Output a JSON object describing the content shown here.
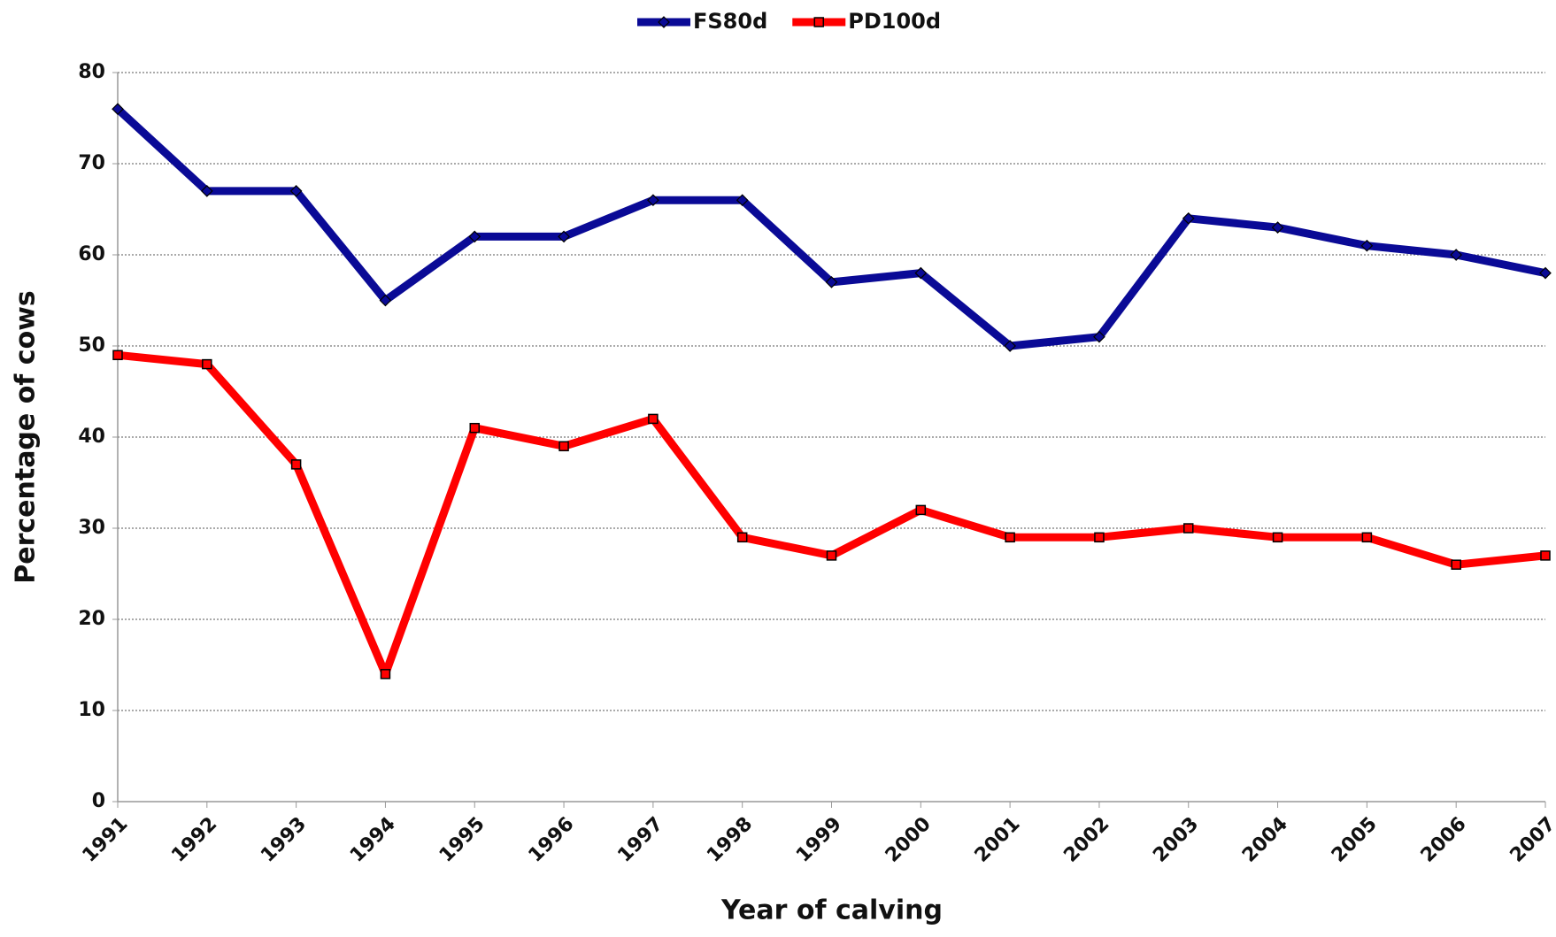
{
  "chart_data": {
    "type": "line",
    "x_label": "Year of calving",
    "y_label": "Percentage of cows",
    "categories": [
      "1991",
      "1992",
      "1993",
      "1994",
      "1995",
      "1996",
      "1997",
      "1998",
      "1999",
      "2000",
      "2001",
      "2002",
      "2003",
      "2004",
      "2005",
      "2006",
      "2007"
    ],
    "series": [
      {
        "name": "FS80d",
        "color": "#0a0a96",
        "marker": "diamond",
        "values": [
          76,
          67,
          67,
          55,
          62,
          62,
          66,
          66,
          57,
          58,
          50,
          51,
          64,
          63,
          61,
          60,
          58
        ]
      },
      {
        "name": "PD100d",
        "color": "#ff0000",
        "marker": "square",
        "values": [
          49,
          48,
          37,
          14,
          41,
          39,
          42,
          29,
          27,
          32,
          29,
          29,
          30,
          29,
          29,
          26,
          27
        ]
      }
    ],
    "ylim": [
      0,
      80
    ],
    "yticks": [
      0,
      10,
      20,
      30,
      40,
      50,
      60,
      70,
      80
    ],
    "grid": true,
    "legend_position": "top"
  }
}
